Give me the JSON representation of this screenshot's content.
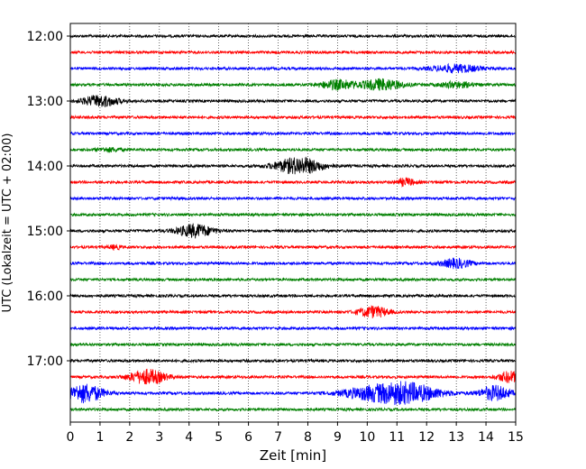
{
  "chart_data": {
    "type": "line",
    "title": "",
    "xlabel": "Zeit  [min]",
    "ylabel": "UTC (Lokalzeit = UTC + 02:00)",
    "xlim": [
      0,
      15
    ],
    "x_ticks": [
      "0",
      "1",
      "2",
      "3",
      "4",
      "5",
      "6",
      "7",
      "8",
      "9",
      "10",
      "11",
      "12",
      "13",
      "14",
      "15"
    ],
    "y_ticks": [
      "12:00",
      "13:00",
      "14:00",
      "15:00",
      "16:00",
      "17:00"
    ],
    "grid": "vertical dotted",
    "trace_interval_minutes": 15,
    "start_time": "12:00",
    "colors": {
      "black": "#000000",
      "red": "#ff0000",
      "blue": "#0000ff",
      "green": "#008000"
    },
    "color_cycle": [
      "black",
      "red",
      "blue",
      "green"
    ],
    "traces": [
      {
        "start": "12:00",
        "color": "black",
        "events": []
      },
      {
        "start": "12:15",
        "color": "red",
        "events": []
      },
      {
        "start": "12:30",
        "color": "blue",
        "events": [
          {
            "t": 13.0,
            "w": 0.8,
            "a": 4
          }
        ]
      },
      {
        "start": "12:45",
        "color": "green",
        "events": [
          {
            "t": 9.0,
            "w": 0.6,
            "a": 5
          },
          {
            "t": 10.5,
            "w": 0.7,
            "a": 6
          },
          {
            "t": 13.0,
            "w": 0.6,
            "a": 3
          }
        ]
      },
      {
        "start": "13:00",
        "color": "black",
        "events": [
          {
            "t": 1.0,
            "w": 0.6,
            "a": 6
          }
        ]
      },
      {
        "start": "13:15",
        "color": "red",
        "events": []
      },
      {
        "start": "13:30",
        "color": "blue",
        "events": []
      },
      {
        "start": "13:45",
        "color": "green",
        "events": [
          {
            "t": 1.3,
            "w": 0.4,
            "a": 2
          }
        ]
      },
      {
        "start": "14:00",
        "color": "black",
        "events": [
          {
            "t": 7.7,
            "w": 0.8,
            "a": 9
          }
        ]
      },
      {
        "start": "14:15",
        "color": "red",
        "events": [
          {
            "t": 11.3,
            "w": 0.3,
            "a": 4
          }
        ]
      },
      {
        "start": "14:30",
        "color": "blue",
        "events": []
      },
      {
        "start": "14:45",
        "color": "green",
        "events": []
      },
      {
        "start": "15:00",
        "color": "black",
        "events": [
          {
            "t": 4.2,
            "w": 0.6,
            "a": 7
          }
        ]
      },
      {
        "start": "15:15",
        "color": "red",
        "events": [
          {
            "t": 1.5,
            "w": 0.2,
            "a": 2
          }
        ]
      },
      {
        "start": "15:30",
        "color": "blue",
        "events": [
          {
            "t": 13.0,
            "w": 0.5,
            "a": 5
          }
        ]
      },
      {
        "start": "15:45",
        "color": "green",
        "events": []
      },
      {
        "start": "16:00",
        "color": "black",
        "events": []
      },
      {
        "start": "16:15",
        "color": "red",
        "events": [
          {
            "t": 10.2,
            "w": 0.5,
            "a": 6
          }
        ]
      },
      {
        "start": "16:30",
        "color": "blue",
        "events": []
      },
      {
        "start": "16:45",
        "color": "green",
        "events": []
      },
      {
        "start": "17:00",
        "color": "black",
        "events": []
      },
      {
        "start": "17:15",
        "color": "red",
        "events": [
          {
            "t": 2.6,
            "w": 0.6,
            "a": 8
          },
          {
            "t": 14.8,
            "w": 0.4,
            "a": 6
          }
        ]
      },
      {
        "start": "17:30",
        "color": "blue",
        "events": [
          {
            "t": 0.5,
            "w": 0.6,
            "a": 10
          },
          {
            "t": 11.3,
            "w": 1.1,
            "a": 11
          },
          {
            "t": 14.3,
            "w": 0.5,
            "a": 8
          },
          {
            "t": 10.0,
            "w": 1.0,
            "a": 5
          }
        ]
      },
      {
        "start": "17:45",
        "color": "green",
        "events": []
      }
    ]
  }
}
